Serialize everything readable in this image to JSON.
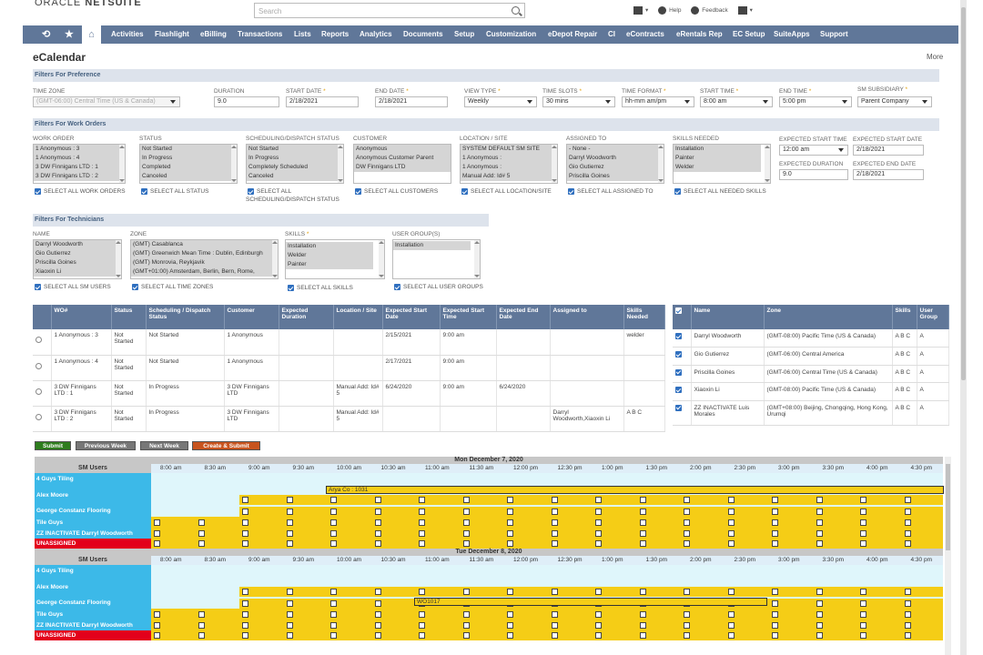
{
  "brand": {
    "oracle": "ORACLE",
    "netsuite": "NETSUITE"
  },
  "search": {
    "placeholder": "Search"
  },
  "tools": {
    "help": "Help",
    "feedback": "Feedback"
  },
  "nav": [
    "Activities",
    "Flashlight",
    "eBilling",
    "Transactions",
    "Lists",
    "Reports",
    "Analytics",
    "Documents",
    "Setup",
    "Customization",
    "eDepot Repair",
    "CI",
    "eContracts",
    "eRentals Rep",
    "EC Setup",
    "SuiteApps",
    "Support"
  ],
  "page": {
    "title": "eCalendar",
    "more": "More"
  },
  "pref": {
    "header": "Filters For Preference",
    "timezone_label": "TIME ZONE",
    "timezone": "(GMT-06:00) Central Time (US & Canada)",
    "duration_label": "DURATION",
    "duration": "9.0",
    "start_date_label": "START DATE",
    "start_date": "2/18/2021",
    "end_date_label": "END DATE",
    "end_date": "2/18/2021",
    "view_type_label": "VIEW TYPE",
    "view_type": "Weekly",
    "time_slots_label": "TIME SLOTS",
    "time_slots": "30 mins",
    "time_format_label": "TIME FORMAT",
    "time_format": "hh-mm am/pm",
    "start_time_label": "START TIME",
    "start_time": "8:00 am",
    "end_time_label": "END TIME",
    "end_time": "5:00 pm",
    "subsidiary_label": "SM SUBSIDIARY",
    "subsidiary": "Parent Company"
  },
  "work": {
    "header": "Filters For Work Orders",
    "wo_label": "WORK ORDER",
    "wo_items": [
      "1 Anonymous : 3",
      "1 Anonymous : 4",
      "3 DW Finnigans LTD : 1",
      "3 DW Finnigans LTD : 2"
    ],
    "status_label": "STATUS",
    "status_items": [
      "Not Started",
      "In Progress",
      "Completed",
      "Canceled"
    ],
    "sched_label": "SCHEDULING/DISPATCH STATUS",
    "sched_items": [
      "Not Started",
      "In Progress",
      "Completely Scheduled",
      "Canceled"
    ],
    "customer_label": "CUSTOMER",
    "customer_items": [
      "Anonymous",
      "Anonymous Customer Parent",
      "DW Finnigans LTD"
    ],
    "location_label": "LOCATION / SITE",
    "location_items": [
      "SYSTEM DEFAULT SM SITE",
      "1 Anonymous :",
      "1 Anonymous :",
      "Manual Add: Id# 5"
    ],
    "assigned_label": "ASSIGNED TO",
    "assigned_items": [
      "- None -",
      "Darryl Woodworth",
      "Gio Gutierrez",
      "Priscilla Goines"
    ],
    "skills_label": "SKILLS NEEDED",
    "skills_items": [
      "Installation",
      "Painter",
      "Welder"
    ],
    "exp_start_time_label": "EXPECTED START TIME",
    "exp_start_time": "12:00 am",
    "exp_start_date_label": "EXPECTED START DATE",
    "exp_start_date": "2/18/2021",
    "exp_duration_label": "EXPECTED DURATION",
    "exp_duration": "9.0",
    "exp_end_date_label": "EXPECTED END DATE",
    "exp_end_date": "2/18/2021",
    "sel_wo": "SELECT ALL WORK ORDERS",
    "sel_status": "SELECT ALL STATUS",
    "sel_sched_1": "SELECT ALL",
    "sel_sched_2": "SCHEDULING/DISPATCH STATUS",
    "sel_customers": "SELECT ALL CUSTOMERS",
    "sel_location": "SELECT ALL LOCATION/SITE",
    "sel_assigned": "SELECT ALL ASSIGNED TO",
    "sel_skills": "SELECT ALL NEEDED SKILLS"
  },
  "techf": {
    "header": "Filters For Technicians",
    "name_label": "NAME",
    "name_items": [
      "Darryl Woodworth",
      "Gio Gutierrez",
      "Priscilla Goines",
      "Xiaoxin Li"
    ],
    "zone_label": "ZONE",
    "zone_items": [
      "(GMT) Casablanca",
      "(GMT) Greenwich Mean Time : Dublin, Edinburgh",
      "(GMT) Monrovia, Reykjavik",
      "(GMT+01:00) Amsterdam, Berlin, Bern, Rome,"
    ],
    "skills_label": "SKILLS",
    "skills_items": [
      "Installation",
      "Welder",
      "Painter"
    ],
    "group_label": "USER GROUP(S)",
    "group_items": [
      "Installation"
    ],
    "sel_sm": "SELECT ALL SM USERS",
    "sel_zones": "SELECT ALL TIME ZONES",
    "sel_skills": "SELECT ALL SKILLS",
    "sel_groups": "SELECT ALL USER GROUPS"
  },
  "wo_table": {
    "headers": [
      "WO#",
      "Status",
      "Scheduling / Dispatch Status",
      "Customer",
      "Expected Duration",
      "Location / Site",
      "Expected Start Date",
      "Expected Start Time",
      "Expected End Date",
      "Assigned to",
      "Skills Needed"
    ],
    "rows": [
      [
        "1 Anonymous : 3",
        "Not Started",
        "Not Started",
        "1 Anonymous",
        "",
        "",
        "2/15/2021",
        "9:00 am",
        "",
        "",
        "welder"
      ],
      [
        "1 Anonymous : 4",
        "Not Started",
        "Not Started",
        "1 Anonymous",
        "",
        "",
        "2/17/2021",
        "9:00 am",
        "",
        "",
        ""
      ],
      [
        "3 DW Finnigans LTD : 1",
        "Not Started",
        "In Progress",
        "3 DW Finnigans LTD",
        "",
        "Manual Add: Id# 5",
        "6/24/2020",
        "9:00 am",
        "6/24/2020",
        "",
        ""
      ],
      [
        "3 DW Finnigans LTD : 2",
        "Not Started",
        "In Progress",
        "3 DW Finnigans LTD",
        "",
        "Manual Add: Id# 5",
        "",
        "",
        "",
        "Darryl Woodworth,Xiaoxin Li",
        "A B C"
      ]
    ]
  },
  "tech_table": {
    "headers": [
      "Name",
      "Zone",
      "Skills",
      "User Group"
    ],
    "rows": [
      [
        "Darryl Woodworth",
        "(GMT-08:00) Pacific Time (US & Canada)",
        "A B C",
        "A"
      ],
      [
        "Gio Gutierrez",
        "(GMT-06:00) Central America",
        "A B C",
        "A"
      ],
      [
        "Priscilla Goines",
        "(GMT-06:00) Central Time (US & Canada)",
        "A B C",
        "A"
      ],
      [
        "Xiaoxin Li",
        "(GMT-08:00) Pacific Time (US & Canada)",
        "A B C",
        "A"
      ],
      [
        "ZZ INACTIVATE Luis Morales",
        "(GMT+08:00) Beijing, Chongqing, Hong Kong, Urumqi",
        "A B C",
        "A"
      ]
    ]
  },
  "buttons": {
    "submit": "Submit",
    "prev": "Previous Week",
    "next": "Next Week",
    "create": "Create & Submit"
  },
  "colors": {
    "submit": "#2e7d1e",
    "prev": "#777777",
    "next": "#777777",
    "create": "#c8541e",
    "nav": "#607799"
  },
  "schedule": {
    "sm_users": "SM Users",
    "times": [
      "8:00 am",
      "8:30 am",
      "9:00 am",
      "9:30 am",
      "10:00 am",
      "10:30 am",
      "11:00 am",
      "11:30 am",
      "12:00 pm",
      "12:30 pm",
      "1:00 pm",
      "1:30 pm",
      "2:00 pm",
      "2:30 pm",
      "3:00 pm",
      "3:30 pm",
      "4:00 pm",
      "4:30 pm"
    ],
    "days": [
      {
        "title": "Mon December 7, 2020",
        "event": "Arya Co : 1031"
      },
      {
        "title": "Tue December 8, 2020",
        "event": "WO1017"
      }
    ],
    "users": [
      "4 Guys Tiling",
      "Alex Moore",
      "George Constanz Flooring",
      "Tile Guys",
      "ZZ INACTIVATE Darryl Woodworth",
      "UNASSIGNED"
    ]
  }
}
